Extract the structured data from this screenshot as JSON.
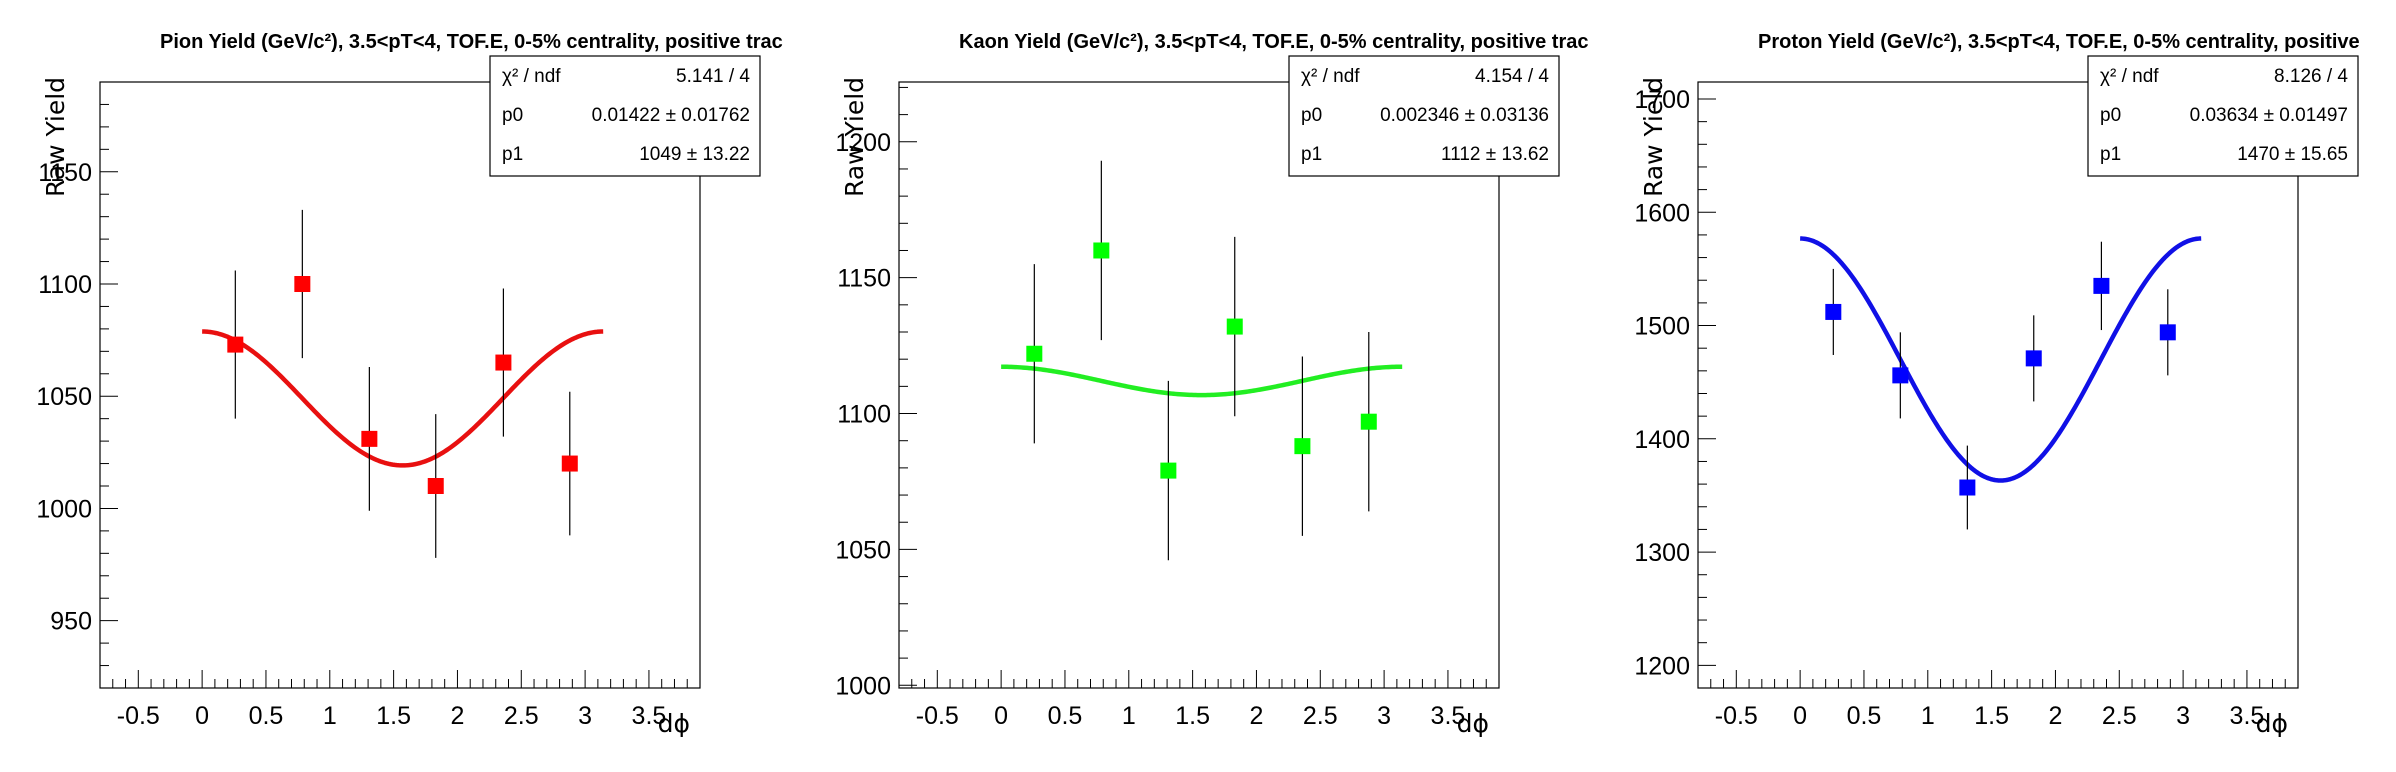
{
  "chart_data": [
    {
      "type": "scatter",
      "title": "Pion Yield (GeV/c²), 3.5<pT<4, TOF.E, 0-5% centrality, positive trac",
      "xlabel": "dϕ",
      "ylabel": "Raw Yield",
      "xlim": [
        -0.8,
        3.9
      ],
      "ylim": [
        920,
        1190
      ],
      "xticks": [
        "-0.5",
        "0",
        "0.5",
        "1",
        "1.5",
        "2",
        "2.5",
        "3",
        "3.5"
      ],
      "yticks": [
        "950",
        "1000",
        "1050",
        "1100",
        "1150"
      ],
      "marker_color": "#ff0000",
      "series": [
        {
          "x": [
            0.26,
            0.785,
            1.31,
            1.83,
            2.36,
            2.88
          ],
          "y": [
            1073,
            1100,
            1031,
            1010,
            1065,
            1020
          ],
          "yerr": [
            33,
            33,
            32,
            32,
            33,
            32
          ]
        }
      ],
      "fit": {
        "p0": 0.01422,
        "p1": 1049,
        "color": "#e81010"
      },
      "stats": [
        {
          "label": "χ² / ndf",
          "value": "5.141 / 4"
        },
        {
          "label": "p0",
          "value": "0.01422 ± 0.01762"
        },
        {
          "label": "p1",
          "value": "1049 ± 13.22"
        }
      ],
      "grid": false,
      "legend": "top-right"
    },
    {
      "type": "scatter",
      "title": "Kaon Yield (GeV/c²), 3.5<pT<4, TOF.E, 0-5% centrality, positive trac",
      "xlabel": "dϕ",
      "ylabel": "Raw Yield",
      "xlim": [
        -0.8,
        3.9
      ],
      "ylim": [
        999,
        1222
      ],
      "xticks": [
        "-0.5",
        "0",
        "0.5",
        "1",
        "1.5",
        "2",
        "2.5",
        "3",
        "3.5"
      ],
      "yticks": [
        "1000",
        "1050",
        "1100",
        "1150",
        "1200"
      ],
      "marker_color": "#00ff00",
      "series": [
        {
          "x": [
            0.26,
            0.785,
            1.31,
            1.83,
            2.36,
            2.88
          ],
          "y": [
            1122,
            1160,
            1079,
            1132,
            1088,
            1097
          ],
          "yerr": [
            33,
            33,
            33,
            33,
            33,
            33
          ]
        }
      ],
      "fit": {
        "p0": 0.002346,
        "p1": 1112,
        "color": "#22ee22"
      },
      "stats": [
        {
          "label": "χ² / ndf",
          "value": "4.154 / 4"
        },
        {
          "label": "p0",
          "value": "0.002346 ± 0.03136"
        },
        {
          "label": "p1",
          "value": "1112 ± 13.62"
        }
      ],
      "grid": false,
      "legend": "top-right"
    },
    {
      "type": "scatter",
      "title": "Proton Yield (GeV/c²), 3.5<pT<4, TOF.E, 0-5% centrality, positive",
      "xlabel": "dϕ",
      "ylabel": "Raw Yield",
      "xlim": [
        -0.8,
        3.9
      ],
      "ylim": [
        1180,
        1715
      ],
      "xticks": [
        "-0.5",
        "0",
        "0.5",
        "1",
        "1.5",
        "2",
        "2.5",
        "3",
        "3.5"
      ],
      "yticks": [
        "1200",
        "1300",
        "1400",
        "1500",
        "1600",
        "1700"
      ],
      "marker_color": "#0000ff",
      "series": [
        {
          "x": [
            0.26,
            0.785,
            1.31,
            1.83,
            2.36,
            2.88
          ],
          "y": [
            1512,
            1456,
            1357,
            1471,
            1535,
            1494
          ],
          "yerr": [
            38,
            38,
            37,
            38,
            39,
            38
          ]
        }
      ],
      "fit": {
        "p0": 0.03634,
        "p1": 1470,
        "color": "#1010e6"
      },
      "stats": [
        {
          "label": "χ² / ndf",
          "value": "8.126 / 4"
        },
        {
          "label": "p0",
          "value": "0.03634 ± 0.01497"
        },
        {
          "label": "p1",
          "value": "1470 ± 15.65"
        }
      ],
      "grid": false,
      "legend": "top-right"
    }
  ]
}
